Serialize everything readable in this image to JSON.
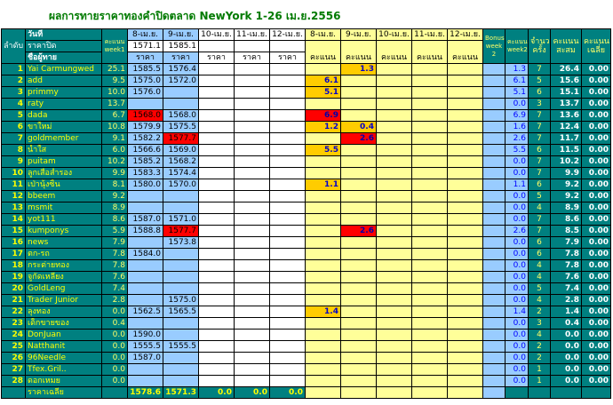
{
  "title": "ผลการทายราคาทองคำปิดตลาด NewYork 1-26 เม.ย.2556",
  "headers": {
    "rank": "ลำดับ",
    "date_label": "วันที่",
    "close_price_label": "ราคาปิด",
    "member_label": "ชื่อผู้ทาย",
    "week1": "คะแนน week1",
    "d1": "8-เม.ย.",
    "d2": "9-เม.ย.",
    "d3": "10-เม.ย.",
    "d4": "11-เม.ย.",
    "d5": "12-เม.ย.",
    "price": "ราคา",
    "score": "คะแนน",
    "bonus": "Bonus week 2",
    "week2": "คะแนน week2",
    "count": "จำนวนครั้ง",
    "total": "คะแนน สะสม",
    "avg": "คะแนน เฉลี่ย"
  },
  "close_prices": [
    "1571.1",
    "1585.1",
    "",
    "",
    ""
  ],
  "rows": [
    {
      "n": "1",
      "name": "Yai Carmungwed",
      "w1": "25.1",
      "p1": "1585.5",
      "p2": "1576.4",
      "s1": "",
      "s2": "1.3",
      "w2": "1.3",
      "cnt": "7",
      "tot": "26.4",
      "avg": "0.00"
    },
    {
      "n": "2",
      "name": "add",
      "w1": "9.5",
      "p1": "1575.0",
      "p2": "1572.0",
      "s1": "6.1",
      "s2": "",
      "w2": "6.1",
      "cnt": "5",
      "tot": "15.6",
      "avg": "0.00"
    },
    {
      "n": "3",
      "name": "primmy",
      "w1": "10.0",
      "p1": "1576.0",
      "p2": "",
      "s1": "5.1",
      "s2": "",
      "w2": "5.1",
      "cnt": "6",
      "tot": "15.1",
      "avg": "0.00"
    },
    {
      "n": "4",
      "name": "raty",
      "w1": "13.7",
      "p1": "",
      "p2": "",
      "s1": "",
      "s2": "",
      "w2": "0.0",
      "cnt": "3",
      "tot": "13.7",
      "avg": "0.00"
    },
    {
      "n": "5",
      "name": "dada",
      "w1": "6.7",
      "p1": "1568.0",
      "p2": "1568.0",
      "s1": "6.9",
      "s2": "",
      "w2": "6.9",
      "cnt": "7",
      "tot": "13.6",
      "avg": "0.00"
    },
    {
      "n": "6",
      "name": "ขาใหม่",
      "w1": "10.8",
      "p1": "1579.9",
      "p2": "1575.5",
      "s1": "1.2",
      "s2": "0.4",
      "w2": "1.6",
      "cnt": "7",
      "tot": "12.4",
      "avg": "0.00"
    },
    {
      "n": "7",
      "name": "goldmember",
      "w1": "9.1",
      "p1": "1582.2",
      "p2": "1577.7",
      "s1": "",
      "s2": "2.6",
      "w2": "2.6",
      "cnt": "7",
      "tot": "11.7",
      "avg": "0.00"
    },
    {
      "n": "8",
      "name": "น้ำใส",
      "w1": "6.0",
      "p1": "1566.6",
      "p2": "1569.0",
      "s1": "5.5",
      "s2": "",
      "w2": "5.5",
      "cnt": "6",
      "tot": "11.5",
      "avg": "0.00"
    },
    {
      "n": "9",
      "name": "puitam",
      "w1": "10.2",
      "p1": "1585.2",
      "p2": "1568.2",
      "s1": "",
      "s2": "",
      "w2": "0.0",
      "cnt": "7",
      "tot": "10.2",
      "avg": "0.00"
    },
    {
      "n": "10",
      "name": "ลูกเสือสำรอง",
      "w1": "9.9",
      "p1": "1583.3",
      "p2": "1574.4",
      "s1": "",
      "s2": "",
      "w2": "0.0",
      "cnt": "7",
      "tot": "9.9",
      "avg": "0.00"
    },
    {
      "n": "11",
      "name": "เป่านุ้งซิ้น",
      "w1": "8.1",
      "p1": "1580.0",
      "p2": "1570.0",
      "s1": "1.1",
      "s2": "",
      "w2": "1.1",
      "cnt": "6",
      "tot": "9.2",
      "avg": "0.00"
    },
    {
      "n": "12",
      "name": "bbeem",
      "w1": "9.2",
      "p1": "",
      "p2": "",
      "s1": "",
      "s2": "",
      "w2": "0.0",
      "cnt": "5",
      "tot": "9.2",
      "avg": "0.00"
    },
    {
      "n": "13",
      "name": "msmit",
      "w1": "8.9",
      "p1": "",
      "p2": "",
      "s1": "",
      "s2": "",
      "w2": "0.0",
      "cnt": "4",
      "tot": "8.9",
      "avg": "0.00"
    },
    {
      "n": "14",
      "name": "yot111",
      "w1": "8.6",
      "p1": "1587.0",
      "p2": "1571.0",
      "s1": "",
      "s2": "",
      "w2": "0.0",
      "cnt": "7",
      "tot": "8.6",
      "avg": "0.00"
    },
    {
      "n": "15",
      "name": "kumponys",
      "w1": "5.9",
      "p1": "1588.8",
      "p2": "1577.7",
      "s1": "",
      "s2": "2.6",
      "w2": "2.6",
      "cnt": "7",
      "tot": "8.5",
      "avg": "0.00"
    },
    {
      "n": "16",
      "name": "news",
      "w1": "7.9",
      "p1": "",
      "p2": "1573.8",
      "s1": "",
      "s2": "",
      "w2": "0.0",
      "cnt": "6",
      "tot": "7.9",
      "avg": "0.00"
    },
    {
      "n": "17",
      "name": "ตก-รถ",
      "w1": "7.8",
      "p1": "1584.0",
      "p2": "",
      "s1": "",
      "s2": "",
      "w2": "0.0",
      "cnt": "6",
      "tot": "7.8",
      "avg": "0.00"
    },
    {
      "n": "18",
      "name": "กระต่ายทอง",
      "w1": "7.8",
      "p1": "",
      "p2": "",
      "s1": "",
      "s2": "",
      "w2": "0.0",
      "cnt": "4",
      "tot": "7.8",
      "avg": "0.00"
    },
    {
      "n": "19",
      "name": "จูกัดเหลียง",
      "w1": "7.6",
      "p1": "",
      "p2": "",
      "s1": "",
      "s2": "",
      "w2": "0.0",
      "cnt": "4",
      "tot": "7.6",
      "avg": "0.00"
    },
    {
      "n": "20",
      "name": "GoldLeng",
      "w1": "7.4",
      "p1": "",
      "p2": "",
      "s1": "",
      "s2": "",
      "w2": "0.0",
      "cnt": "5",
      "tot": "7.4",
      "avg": "0.00"
    },
    {
      "n": "21",
      "name": "Trader Junior",
      "w1": "2.8",
      "p1": "",
      "p2": "1575.0",
      "s1": "",
      "s2": "",
      "w2": "0.0",
      "cnt": "4",
      "tot": "2.8",
      "avg": "0.00"
    },
    {
      "n": "22",
      "name": "ลุงทอง",
      "w1": "0.0",
      "p1": "1562.5",
      "p2": "1565.5",
      "s1": "1.4",
      "s2": "",
      "w2": "1.4",
      "cnt": "2",
      "tot": "1.4",
      "avg": "0.00"
    },
    {
      "n": "23",
      "name": "เด็กขายของ",
      "w1": "0.4",
      "p1": "",
      "p2": "",
      "s1": "",
      "s2": "",
      "w2": "0.0",
      "cnt": "3",
      "tot": "0.4",
      "avg": "0.00"
    },
    {
      "n": "24",
      "name": "DonJuan",
      "w1": "0.0",
      "p1": "1590.0",
      "p2": "",
      "s1": "",
      "s2": "",
      "w2": "0.0",
      "cnt": "4",
      "tot": "0.0",
      "avg": "0.00"
    },
    {
      "n": "25",
      "name": "Natthanit",
      "w1": "0.0",
      "p1": "1555.5",
      "p2": "1555.5",
      "s1": "",
      "s2": "",
      "w2": "0.0",
      "cnt": "2",
      "tot": "0.0",
      "avg": "0.00"
    },
    {
      "n": "26",
      "name": "96Needle",
      "w1": "0.0",
      "p1": "1587.0",
      "p2": "",
      "s1": "",
      "s2": "",
      "w2": "0.0",
      "cnt": "2",
      "tot": "0.0",
      "avg": "0.00"
    },
    {
      "n": "27",
      "name": "Tfex.Gril..",
      "w1": "0.0",
      "p1": "",
      "p2": "",
      "s1": "",
      "s2": "",
      "w2": "0.0",
      "cnt": "1",
      "tot": "0.0",
      "avg": "0.00"
    },
    {
      "n": "28",
      "name": "ดอกเหมย",
      "w1": "0.0",
      "p1": "",
      "p2": "",
      "s1": "",
      "s2": "",
      "w2": "0.0",
      "cnt": "1",
      "tot": "0.0",
      "avg": "0.00"
    }
  ],
  "footer": {
    "label": "ราคาเฉลี่ย",
    "avgs": [
      "1578.6",
      "1571.3",
      "0.0",
      "0.0",
      "0.0"
    ]
  },
  "highlight": {
    "red_price_cells": [
      "5-p1",
      "7-p2",
      "15-p2"
    ],
    "red_score_cells": [
      "5-s1",
      "7-s2",
      "15-s2"
    ]
  },
  "colors": {
    "header_bg": "#008080",
    "price_col": "#99ccff",
    "score_col": "#ffff99",
    "winner": "#ffcc00",
    "miss_red": "#ff0000",
    "title_green": "#007a00"
  }
}
